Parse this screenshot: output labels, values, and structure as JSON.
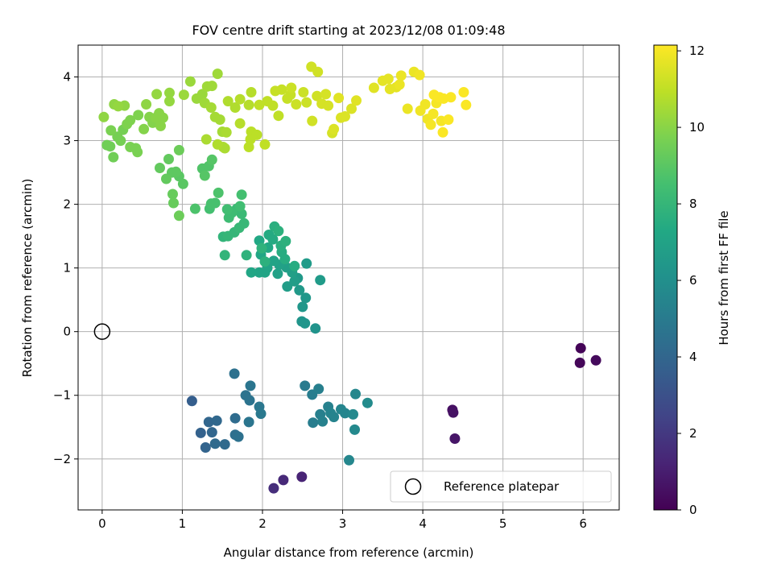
{
  "chart_data": {
    "type": "scatter",
    "title": "FOV centre drift starting at 2023/12/08 01:09:48",
    "xlabel": "Angular distance from reference (arcmin)",
    "ylabel": "Rotation from reference (arcmin)",
    "xlim": [
      -0.3,
      6.45
    ],
    "ylim": [
      -2.8,
      4.5
    ],
    "xticks": [
      0,
      1,
      2,
      3,
      4,
      5,
      6
    ],
    "yticks": [
      -2,
      -1,
      0,
      1,
      2,
      3,
      4
    ],
    "grid": true,
    "legend": {
      "placement": "lower-right",
      "entries": [
        "Reference platepar"
      ]
    },
    "colorbar": {
      "label": "Hours from first FF file",
      "range": [
        0,
        12.15
      ],
      "ticks": [
        0,
        2,
        4,
        6,
        8,
        10,
        12
      ],
      "colormap": "viridis"
    },
    "reference_point": {
      "x": 0,
      "y": 0,
      "label": "Reference platepar"
    },
    "points": [
      [
        5.97,
        -0.26,
        0.1
      ],
      [
        5.96,
        -0.49,
        0.2
      ],
      [
        6.16,
        -0.45,
        0.3
      ],
      [
        4.37,
        -1.23,
        0.5
      ],
      [
        4.38,
        -1.27,
        0.6
      ],
      [
        4.4,
        -1.68,
        0.7
      ],
      [
        2.49,
        -2.28,
        1.2
      ],
      [
        2.26,
        -2.33,
        1.4
      ],
      [
        2.14,
        -2.46,
        1.6
      ],
      [
        1.12,
        -1.09,
        3.6
      ],
      [
        1.23,
        -1.59,
        3.8
      ],
      [
        1.29,
        -1.82,
        3.9
      ],
      [
        1.33,
        -1.42,
        4.0
      ],
      [
        1.37,
        -1.58,
        4.0
      ],
      [
        1.43,
        -1.4,
        4.1
      ],
      [
        1.41,
        -1.76,
        4.2
      ],
      [
        1.53,
        -1.77,
        4.2
      ],
      [
        1.66,
        -1.36,
        4.3
      ],
      [
        1.65,
        -0.66,
        4.5
      ],
      [
        1.66,
        -1.62,
        4.4
      ],
      [
        1.7,
        -1.65,
        4.5
      ],
      [
        1.79,
        -1.0,
        4.6
      ],
      [
        1.84,
        -1.08,
        4.6
      ],
      [
        1.85,
        -0.85,
        4.7
      ],
      [
        1.83,
        -1.42,
        4.7
      ],
      [
        1.96,
        -1.18,
        4.8
      ],
      [
        1.98,
        -1.29,
        4.9
      ],
      [
        2.53,
        -0.85,
        5.0
      ],
      [
        2.62,
        -0.99,
        5.1
      ],
      [
        2.7,
        -0.9,
        5.2
      ],
      [
        2.63,
        -1.43,
        5.1
      ],
      [
        2.72,
        -1.3,
        5.2
      ],
      [
        2.75,
        -1.41,
        5.3
      ],
      [
        2.82,
        -1.18,
        5.3
      ],
      [
        2.85,
        -1.28,
        5.4
      ],
      [
        2.89,
        -1.34,
        5.4
      ],
      [
        2.98,
        -1.22,
        5.5
      ],
      [
        3.03,
        -1.28,
        5.5
      ],
      [
        3.08,
        -2.02,
        5.6
      ],
      [
        3.16,
        -0.98,
        5.6
      ],
      [
        3.15,
        -1.54,
        5.7
      ],
      [
        3.31,
        -1.12,
        5.8
      ],
      [
        3.13,
        -1.3,
        5.7
      ],
      [
        2.66,
        0.05,
        6.2
      ],
      [
        2.49,
        0.16,
        6.3
      ],
      [
        2.53,
        0.13,
        6.3
      ],
      [
        2.5,
        0.39,
        6.4
      ],
      [
        2.54,
        0.53,
        6.4
      ],
      [
        2.46,
        0.65,
        6.5
      ],
      [
        2.44,
        0.84,
        6.5
      ],
      [
        2.55,
        1.07,
        6.6
      ],
      [
        2.72,
        0.81,
        6.6
      ],
      [
        2.31,
        0.71,
        6.7
      ],
      [
        2.4,
        0.79,
        6.7
      ],
      [
        2.37,
        0.93,
        6.8
      ],
      [
        2.3,
        1.01,
        6.8
      ],
      [
        2.19,
        0.91,
        6.9
      ],
      [
        2.21,
        1.05,
        6.9
      ],
      [
        2.14,
        1.11,
        7.0
      ],
      [
        2.06,
        1.0,
        7.0
      ],
      [
        2.03,
        0.93,
        7.1
      ],
      [
        1.96,
        0.93,
        7.1
      ],
      [
        1.86,
        0.93,
        7.2
      ],
      [
        1.98,
        1.21,
        7.2
      ],
      [
        2.07,
        1.32,
        7.3
      ],
      [
        1.96,
        1.43,
        7.3
      ],
      [
        2.08,
        1.52,
        7.4
      ],
      [
        2.13,
        1.45,
        7.4
      ],
      [
        2.24,
        1.25,
        7.5
      ],
      [
        2.28,
        1.14,
        7.5
      ],
      [
        2.4,
        1.03,
        7.5
      ],
      [
        2.23,
        1.35,
        7.6
      ],
      [
        2.15,
        1.65,
        7.6
      ],
      [
        2.2,
        1.58,
        7.7
      ],
      [
        2.29,
        1.42,
        7.7
      ],
      [
        2.03,
        1.1,
        7.7
      ],
      [
        1.99,
        1.31,
        7.8
      ],
      [
        1.8,
        1.2,
        7.8
      ],
      [
        1.53,
        1.2,
        7.9
      ],
      [
        1.51,
        1.49,
        7.9
      ],
      [
        1.57,
        1.5,
        8.0
      ],
      [
        1.65,
        1.56,
        8.0
      ],
      [
        1.71,
        1.63,
        8.1
      ],
      [
        1.77,
        1.7,
        8.1
      ],
      [
        1.74,
        1.85,
        8.2
      ],
      [
        1.68,
        1.93,
        8.2
      ],
      [
        1.58,
        1.79,
        8.3
      ],
      [
        1.62,
        1.87,
        8.3
      ],
      [
        1.56,
        1.92,
        8.4
      ],
      [
        1.72,
        1.97,
        8.4
      ],
      [
        1.74,
        2.15,
        8.5
      ],
      [
        1.34,
        1.93,
        8.5
      ],
      [
        1.36,
        2.01,
        8.6
      ],
      [
        1.41,
        2.02,
        8.6
      ],
      [
        1.45,
        2.18,
        8.7
      ],
      [
        1.16,
        1.93,
        8.7
      ],
      [
        1.25,
        2.56,
        8.8
      ],
      [
        1.33,
        2.6,
        8.8
      ],
      [
        1.37,
        2.7,
        8.9
      ],
      [
        1.28,
        2.45,
        8.9
      ],
      [
        1.01,
        2.32,
        9.0
      ],
      [
        0.96,
        2.44,
        9.0
      ],
      [
        0.92,
        2.51,
        9.1
      ],
      [
        0.87,
        2.5,
        9.1
      ],
      [
        0.83,
        2.71,
        9.2
      ],
      [
        0.8,
        2.4,
        9.2
      ],
      [
        0.72,
        2.57,
        9.2
      ],
      [
        0.88,
        2.16,
        9.3
      ],
      [
        0.89,
        2.02,
        9.3
      ],
      [
        0.96,
        1.82,
        9.4
      ],
      [
        0.96,
        2.85,
        9.4
      ],
      [
        0.1,
        2.91,
        9.5
      ],
      [
        0.06,
        2.93,
        9.5
      ],
      [
        0.14,
        2.74,
        9.5
      ],
      [
        0.23,
        3.0,
        9.6
      ],
      [
        0.19,
        3.06,
        9.6
      ],
      [
        0.26,
        3.17,
        9.6
      ],
      [
        0.35,
        2.9,
        9.7
      ],
      [
        0.44,
        2.82,
        9.7
      ],
      [
        0.42,
        2.88,
        9.7
      ],
      [
        0.11,
        3.16,
        9.7
      ],
      [
        0.31,
        3.26,
        9.8
      ],
      [
        0.35,
        3.32,
        9.8
      ],
      [
        0.45,
        3.4,
        9.8
      ],
      [
        0.52,
        3.18,
        9.9
      ],
      [
        0.59,
        3.37,
        9.9
      ],
      [
        0.63,
        3.28,
        9.9
      ],
      [
        0.67,
        3.36,
        10.0
      ],
      [
        0.71,
        3.43,
        10.0
      ],
      [
        0.76,
        3.36,
        10.0
      ],
      [
        0.73,
        3.23,
        10.0
      ],
      [
        0.55,
        3.57,
        10.1
      ],
      [
        0.28,
        3.55,
        10.1
      ],
      [
        0.02,
        3.37,
        10.1
      ],
      [
        0.15,
        3.57,
        10.1
      ],
      [
        0.2,
        3.54,
        10.2
      ],
      [
        0.68,
        3.73,
        10.2
      ],
      [
        0.84,
        3.62,
        10.2
      ],
      [
        0.84,
        3.75,
        10.2
      ],
      [
        1.02,
        3.72,
        10.3
      ],
      [
        1.1,
        3.93,
        10.3
      ],
      [
        1.18,
        3.66,
        10.3
      ],
      [
        1.25,
        3.73,
        10.3
      ],
      [
        1.28,
        3.59,
        10.4
      ],
      [
        1.31,
        3.85,
        10.4
      ],
      [
        1.37,
        3.86,
        10.4
      ],
      [
        1.44,
        4.05,
        10.4
      ],
      [
        1.36,
        3.52,
        10.5
      ],
      [
        1.41,
        3.37,
        10.5
      ],
      [
        1.47,
        3.33,
        10.5
      ],
      [
        1.5,
        3.14,
        10.5
      ],
      [
        1.55,
        3.13,
        10.6
      ],
      [
        1.51,
        2.9,
        10.6
      ],
      [
        1.53,
        2.88,
        10.6
      ],
      [
        1.3,
        3.02,
        10.6
      ],
      [
        1.44,
        2.94,
        10.7
      ],
      [
        1.57,
        3.62,
        10.7
      ],
      [
        1.66,
        3.52,
        10.7
      ],
      [
        1.72,
        3.65,
        10.8
      ],
      [
        1.72,
        3.27,
        10.8
      ],
      [
        1.83,
        3.56,
        10.8
      ],
      [
        1.86,
        3.76,
        10.8
      ],
      [
        1.86,
        3.14,
        10.9
      ],
      [
        1.85,
        3.02,
        10.9
      ],
      [
        1.83,
        2.9,
        10.9
      ],
      [
        1.93,
        3.09,
        10.9
      ],
      [
        2.03,
        2.94,
        11.0
      ],
      [
        1.96,
        3.56,
        11.0
      ],
      [
        2.06,
        3.62,
        11.0
      ],
      [
        2.13,
        3.55,
        11.0
      ],
      [
        2.2,
        3.39,
        11.0
      ],
      [
        2.16,
        3.78,
        11.1
      ],
      [
        2.24,
        3.8,
        11.1
      ],
      [
        2.31,
        3.66,
        11.1
      ],
      [
        2.35,
        3.72,
        11.1
      ],
      [
        2.36,
        3.83,
        11.2
      ],
      [
        2.42,
        3.57,
        11.2
      ],
      [
        2.51,
        3.76,
        11.2
      ],
      [
        2.55,
        3.6,
        11.2
      ],
      [
        2.62,
        3.31,
        11.3
      ],
      [
        2.61,
        4.16,
        11.3
      ],
      [
        2.69,
        4.08,
        11.3
      ],
      [
        2.68,
        3.7,
        11.3
      ],
      [
        2.74,
        3.58,
        11.4
      ],
      [
        2.79,
        3.73,
        11.4
      ],
      [
        2.82,
        3.55,
        11.4
      ],
      [
        2.87,
        3.12,
        11.4
      ],
      [
        2.89,
        3.18,
        11.5
      ],
      [
        2.98,
        3.36,
        11.5
      ],
      [
        3.03,
        3.38,
        11.5
      ],
      [
        3.11,
        3.5,
        11.5
      ],
      [
        3.17,
        3.63,
        11.6
      ],
      [
        2.95,
        3.67,
        11.6
      ],
      [
        3.39,
        3.83,
        11.6
      ],
      [
        3.5,
        3.94,
        11.7
      ],
      [
        3.57,
        3.97,
        11.7
      ],
      [
        3.59,
        3.81,
        11.7
      ],
      [
        3.67,
        3.84,
        11.7
      ],
      [
        3.71,
        3.88,
        11.8
      ],
      [
        3.73,
        4.02,
        11.8
      ],
      [
        3.81,
        3.5,
        11.8
      ],
      [
        3.89,
        4.08,
        11.8
      ],
      [
        3.96,
        4.03,
        11.9
      ],
      [
        3.97,
        3.47,
        11.9
      ],
      [
        4.03,
        3.57,
        11.9
      ],
      [
        4.06,
        3.34,
        11.9
      ],
      [
        4.1,
        3.25,
        12.0
      ],
      [
        4.13,
        3.42,
        12.0
      ],
      [
        4.17,
        3.59,
        12.0
      ],
      [
        4.23,
        3.31,
        12.0
      ],
      [
        4.25,
        3.13,
        12.1
      ],
      [
        4.21,
        3.68,
        12.1
      ],
      [
        4.26,
        3.66,
        12.1
      ],
      [
        4.32,
        3.33,
        12.1
      ],
      [
        4.35,
        3.68,
        12.1
      ],
      [
        4.14,
        3.72,
        12.1
      ],
      [
        4.51,
        3.76,
        12.1
      ],
      [
        4.54,
        3.56,
        12.1
      ]
    ]
  }
}
